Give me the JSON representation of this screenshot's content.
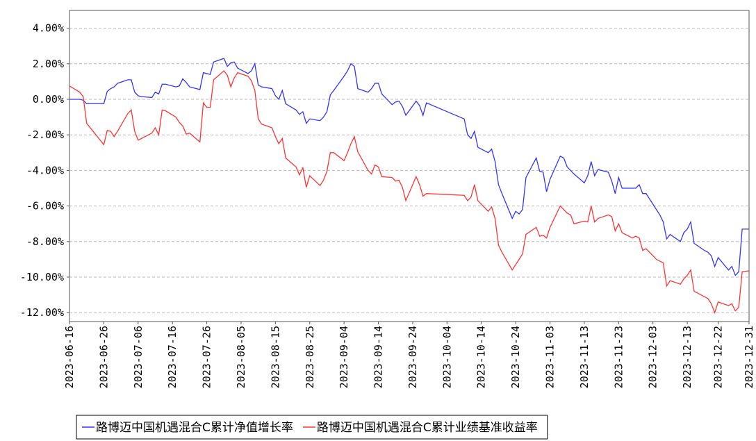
{
  "chart_data": {
    "type": "line",
    "x": [
      "2023-06-16",
      "2023-06-19",
      "2023-06-20",
      "2023-06-21",
      "2023-06-26",
      "2023-06-27",
      "2023-06-28",
      "2023-06-29",
      "2023-06-30",
      "2023-07-03",
      "2023-07-04",
      "2023-07-05",
      "2023-07-06",
      "2023-07-07",
      "2023-07-10",
      "2023-07-11",
      "2023-07-12",
      "2023-07-13",
      "2023-07-14",
      "2023-07-17",
      "2023-07-18",
      "2023-07-19",
      "2023-07-20",
      "2023-07-21",
      "2023-07-24",
      "2023-07-25",
      "2023-07-26",
      "2023-07-27",
      "2023-07-28",
      "2023-07-31",
      "2023-08-01",
      "2023-08-02",
      "2023-08-03",
      "2023-08-04",
      "2023-08-07",
      "2023-08-08",
      "2023-08-09",
      "2023-08-10",
      "2023-08-11",
      "2023-08-14",
      "2023-08-15",
      "2023-08-16",
      "2023-08-17",
      "2023-08-18",
      "2023-08-21",
      "2023-08-22",
      "2023-08-23",
      "2023-08-24",
      "2023-08-25",
      "2023-08-28",
      "2023-08-29",
      "2023-08-30",
      "2023-08-31",
      "2023-09-01",
      "2023-09-04",
      "2023-09-05",
      "2023-09-06",
      "2023-09-07",
      "2023-09-08",
      "2023-09-11",
      "2023-09-12",
      "2023-09-13",
      "2023-09-14",
      "2023-09-15",
      "2023-09-18",
      "2023-09-19",
      "2023-09-20",
      "2023-09-21",
      "2023-09-22",
      "2023-09-25",
      "2023-09-26",
      "2023-09-27",
      "2023-09-28",
      "2023-10-09",
      "2023-10-10",
      "2023-10-11",
      "2023-10-12",
      "2023-10-13",
      "2023-10-16",
      "2023-10-17",
      "2023-10-18",
      "2023-10-19",
      "2023-10-20",
      "2023-10-23",
      "2023-10-24",
      "2023-10-25",
      "2023-10-26",
      "2023-10-27",
      "2023-10-30",
      "2023-10-31",
      "2023-11-01",
      "2023-11-02",
      "2023-11-03",
      "2023-11-06",
      "2023-11-07",
      "2023-11-08",
      "2023-11-09",
      "2023-11-10",
      "2023-11-13",
      "2023-11-14",
      "2023-11-15",
      "2023-11-16",
      "2023-11-17",
      "2023-11-20",
      "2023-11-21",
      "2023-11-22",
      "2023-11-23",
      "2023-11-24",
      "2023-11-27",
      "2023-11-28",
      "2023-11-29",
      "2023-11-30",
      "2023-12-01",
      "2023-12-04",
      "2023-12-05",
      "2023-12-06",
      "2023-12-07",
      "2023-12-08",
      "2023-12-11",
      "2023-12-12",
      "2023-12-13",
      "2023-12-14",
      "2023-12-15",
      "2023-12-18",
      "2023-12-19",
      "2023-12-20",
      "2023-12-21",
      "2023-12-22",
      "2023-12-25",
      "2023-12-26",
      "2023-12-27",
      "2023-12-28",
      "2023-12-29",
      "2023-12-31"
    ],
    "series": [
      {
        "name": "路博迈中国机遇混合C累计净值增长率",
        "color": "#3333ff",
        "values": [
          0.0,
          0.0,
          -0.05,
          -0.25,
          -0.25,
          0.45,
          0.6,
          0.7,
          0.9,
          1.1,
          1.1,
          0.4,
          0.2,
          0.15,
          0.1,
          0.4,
          0.3,
          0.85,
          0.85,
          0.7,
          0.75,
          1.15,
          0.95,
          0.7,
          0.55,
          1.5,
          1.45,
          1.4,
          2.1,
          2.3,
          1.85,
          2.05,
          2.1,
          1.75,
          1.45,
          1.6,
          2.0,
          0.8,
          0.7,
          0.6,
          0.2,
          0.0,
          0.5,
          -0.25,
          -0.6,
          -0.85,
          -0.7,
          -1.35,
          -1.1,
          -1.2,
          -1.0,
          -0.7,
          0.25,
          0.5,
          1.3,
          1.6,
          2.0,
          1.85,
          0.6,
          0.4,
          0.6,
          0.9,
          0.9,
          0.3,
          -0.3,
          -0.15,
          -0.1,
          -0.4,
          -0.9,
          -0.1,
          -0.35,
          -0.9,
          -0.2,
          -1.1,
          -2.0,
          -2.2,
          -1.8,
          -2.7,
          -3.0,
          -2.8,
          -3.5,
          -4.8,
          -5.3,
          -6.7,
          -6.3,
          -6.45,
          -6.2,
          -4.4,
          -3.3,
          -4.05,
          -4.1,
          -5.2,
          -4.5,
          -3.2,
          -3.3,
          -3.8,
          -4.0,
          -4.2,
          -4.7,
          -4.3,
          -3.5,
          -4.3,
          -3.95,
          -4.1,
          -4.6,
          -5.3,
          -4.4,
          -5.0,
          -5.0,
          -5.0,
          -4.8,
          -5.3,
          -5.3,
          -6.2,
          -6.5,
          -6.9,
          -7.85,
          -7.6,
          -8.0,
          -7.5,
          -7.3,
          -6.9,
          -8.1,
          -8.5,
          -8.6,
          -8.8,
          -9.4,
          -8.9,
          -9.6,
          -9.4,
          -9.9,
          -9.7,
          -7.3,
          -7.3
        ]
      },
      {
        "name": "路博迈中国机遇混合C累计业绩基准收益率",
        "color": "#ff3333",
        "values": [
          0.75,
          0.4,
          0.15,
          -1.35,
          -2.55,
          -1.75,
          -1.8,
          -2.1,
          -1.8,
          -0.8,
          -0.6,
          -1.8,
          -2.3,
          -2.2,
          -1.9,
          -1.6,
          -2.0,
          -0.6,
          -0.65,
          -1.0,
          -1.3,
          -1.5,
          -1.95,
          -1.9,
          -2.4,
          -0.2,
          -0.45,
          -0.45,
          1.1,
          1.6,
          1.35,
          0.7,
          1.2,
          1.5,
          1.3,
          1.05,
          0.5,
          -1.1,
          -1.4,
          -1.6,
          -2.1,
          -2.5,
          -2.2,
          -3.3,
          -3.8,
          -4.25,
          -3.85,
          -4.95,
          -4.3,
          -4.85,
          -4.55,
          -4.05,
          -3.0,
          -3.0,
          -3.45,
          -3.0,
          -2.5,
          -2.1,
          -2.95,
          -4.0,
          -4.2,
          -3.7,
          -3.8,
          -4.35,
          -4.4,
          -4.6,
          -4.55,
          -4.95,
          -5.7,
          -4.35,
          -4.8,
          -5.45,
          -5.3,
          -5.4,
          -5.7,
          -5.5,
          -4.8,
          -5.7,
          -6.3,
          -6.05,
          -6.7,
          -8.2,
          -8.6,
          -9.6,
          -9.3,
          -9.0,
          -8.7,
          -7.6,
          -7.2,
          -7.7,
          -7.65,
          -7.8,
          -7.2,
          -6.0,
          -6.2,
          -6.4,
          -6.5,
          -7.0,
          -6.85,
          -6.9,
          -6.0,
          -6.9,
          -6.7,
          -6.5,
          -6.6,
          -7.4,
          -7.0,
          -7.5,
          -7.8,
          -7.7,
          -7.8,
          -8.5,
          -8.4,
          -9.0,
          -9.1,
          -9.2,
          -10.5,
          -10.2,
          -10.4,
          -10.1,
          -9.9,
          -9.6,
          -10.8,
          -11.1,
          -11.2,
          -11.5,
          -12.0,
          -11.4,
          -11.6,
          -11.5,
          -11.9,
          -11.7,
          -9.7,
          -9.65
        ]
      }
    ],
    "xlim": [
      "2023-06-16",
      "2023-12-31"
    ],
    "xticks": [
      "2023-06-16",
      "2023-06-26",
      "2023-07-06",
      "2023-07-16",
      "2023-07-26",
      "2023-08-05",
      "2023-08-15",
      "2023-08-25",
      "2023-09-04",
      "2023-09-14",
      "2023-09-24",
      "2023-10-04",
      "2023-10-14",
      "2023-10-24",
      "2023-11-03",
      "2023-11-13",
      "2023-11-23",
      "2023-12-03",
      "2023-12-13",
      "2023-12-22",
      "2023-12-31"
    ],
    "ylim": [
      -12.5,
      5.0
    ],
    "yticks": [
      {
        "value": 4,
        "label": "4.00%"
      },
      {
        "value": 2,
        "label": "2.00%"
      },
      {
        "value": 0,
        "label": "0.00%"
      },
      {
        "value": -2,
        "label": "-2.00%"
      },
      {
        "value": -4,
        "label": "-4.00%"
      },
      {
        "value": -6,
        "label": "-6.00%"
      },
      {
        "value": -8,
        "label": "-8.00%"
      },
      {
        "value": -10,
        "label": "-10.00%"
      },
      {
        "value": -12,
        "label": "-12.00%"
      }
    ],
    "grid": true,
    "legend": "bottom"
  }
}
